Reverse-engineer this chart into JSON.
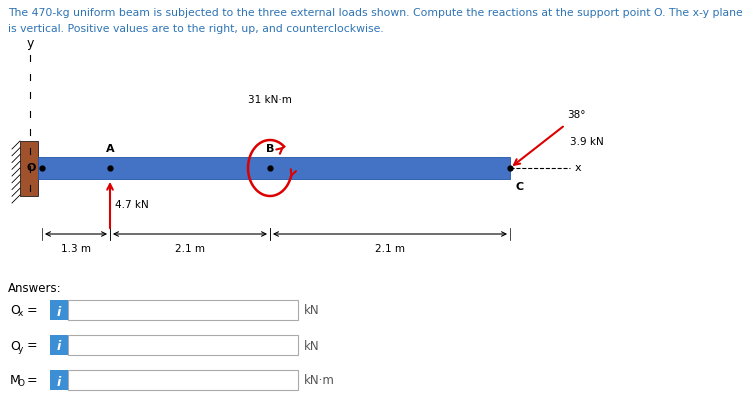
{
  "title_line1": "The 470-kg uniform beam is subjected to the three external loads shown. Compute the reactions at the support point O. The x-y plane",
  "title_line2": "is vertical. Positive values are to the right, up, and counterclockwise.",
  "title_color": "#2E74B5",
  "bg_color": "#ffffff",
  "beam_color": "#4472C4",
  "beam_edge_color": "#2255AA",
  "wall_color": "#A0522D",
  "red_color": "#DD0000",
  "black": "#000000",
  "label_color": "#555555",
  "load_47_label": "4.7 kN",
  "load_31_label": "31 kN·m",
  "load_39_label": "3.9 kN",
  "angle_label": "38°",
  "dim_13": "1.3 m",
  "dim_21a": "2.1 m",
  "dim_21b": "2.1 m",
  "answers_label": "Answers:",
  "unit_kn": "kN",
  "unit_knm": "kN·m",
  "info_btn_color": "#3C8FD4",
  "input_edge_color": "#aaaaaa"
}
